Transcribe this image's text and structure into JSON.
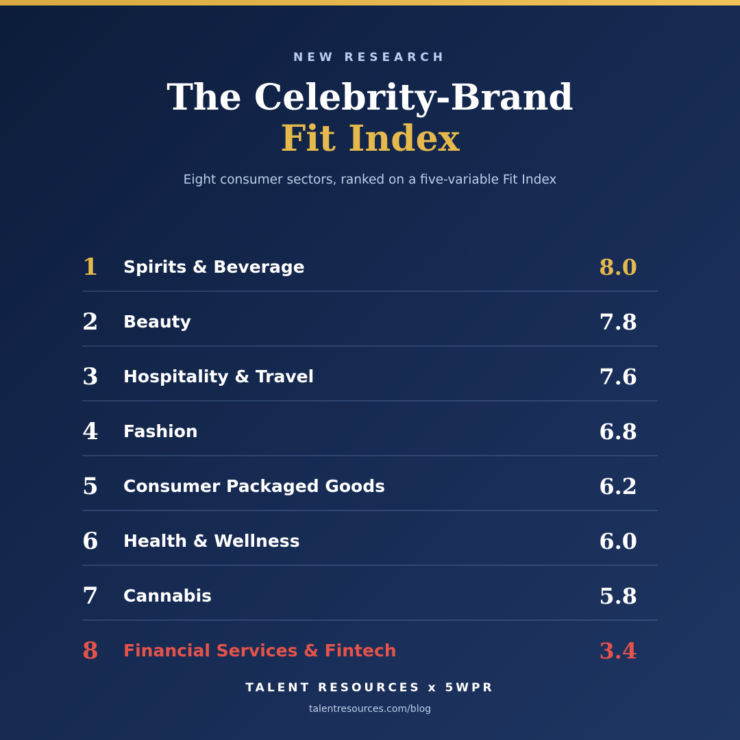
{
  "header": {
    "kicker": "NEW RESEARCH",
    "title_line1": "The Celebrity-Brand",
    "title_line2": "Fit Index",
    "subtitle": "Eight consumer sectors, ranked on a five-variable Fit Index"
  },
  "rows": [
    {
      "rank": "1",
      "sector": "Spirits & Beverage",
      "score": "8.0"
    },
    {
      "rank": "2",
      "sector": "Beauty",
      "score": "7.8"
    },
    {
      "rank": "3",
      "sector": "Hospitality & Travel",
      "score": "7.6"
    },
    {
      "rank": "4",
      "sector": "Fashion",
      "score": "6.8"
    },
    {
      "rank": "5",
      "sector": "Consumer Packaged Goods",
      "score": "6.2"
    },
    {
      "rank": "6",
      "sector": "Health & Wellness",
      "score": "6.0"
    },
    {
      "rank": "7",
      "sector": "Cannabis",
      "score": "5.8"
    },
    {
      "rank": "8",
      "sector": "Financial Services & Fintech",
      "score": "3.4"
    }
  ],
  "footer": {
    "brand": "TALENT RESOURCES x 5WPR",
    "url": "talentresources.com/blog"
  }
}
